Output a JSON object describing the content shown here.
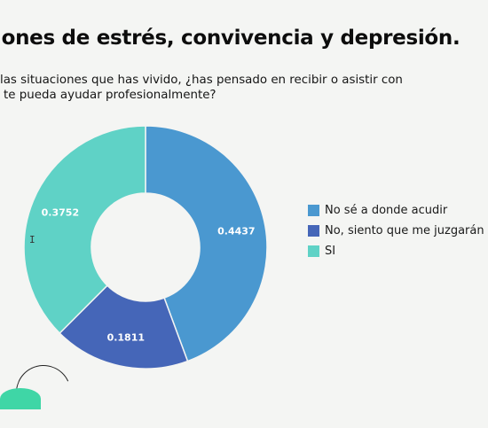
{
  "header": {
    "title": "iones de estrés, convivencia y depresión.",
    "question_line1": "las situaciones que has vivido, ¿has pensado en recibir o asistir con",
    "question_line2": "te pueda ayudar profesionalmente?"
  },
  "chart_data": {
    "type": "pie",
    "donut": true,
    "categories": [
      "No sé a donde acudir",
      "No, siento que me juzgarán",
      "SI"
    ],
    "values": [
      0.4437,
      0.1811,
      0.3752
    ],
    "value_labels": [
      "0.4437",
      "0.1811",
      "0.3752"
    ],
    "colors": [
      "#4a98d0",
      "#4566b8",
      "#5fd2c6"
    ],
    "start_angle_deg": 0,
    "direction": "clockwise",
    "legend_position": "right"
  },
  "legend": {
    "items": [
      {
        "label": "No sé a donde acudir",
        "color": "#4a98d0"
      },
      {
        "label": "No, siento que me juzgarán",
        "color": "#4566b8"
      },
      {
        "label": "SI",
        "color": "#5fd2c6"
      }
    ]
  },
  "cursor_glyph": "I"
}
